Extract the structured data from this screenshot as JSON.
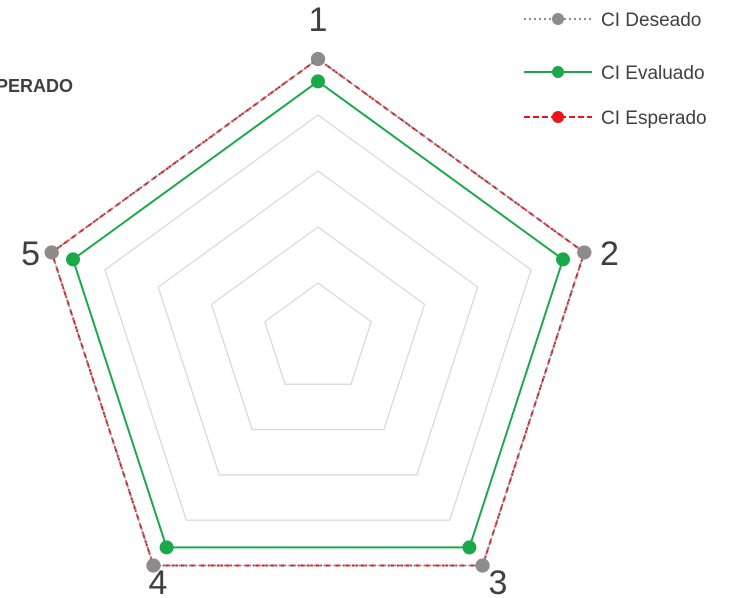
{
  "chart_data": {
    "type": "radar",
    "title_fragment": "PERADO",
    "axes": [
      "1",
      "2",
      "3",
      "4",
      "5"
    ],
    "rmax": 5,
    "gridlines": [
      1,
      2,
      3,
      4,
      5
    ],
    "series": [
      {
        "name": "CI Deseado",
        "values": [
          5,
          5,
          5,
          5,
          5
        ],
        "color": "#8c8c8c",
        "style": "dotted",
        "marker": "circle"
      },
      {
        "name": "CI Evaluado",
        "values": [
          4.6,
          4.6,
          4.6,
          4.6,
          4.6
        ],
        "color": "#1aa84a",
        "style": "solid",
        "marker": "circle"
      },
      {
        "name": "CI Esperado",
        "values": [
          5,
          5,
          5,
          5,
          5
        ],
        "color": "#e8151b",
        "style": "dashed",
        "marker": "circle"
      }
    ],
    "legend_position": "top-right",
    "grid": true
  }
}
